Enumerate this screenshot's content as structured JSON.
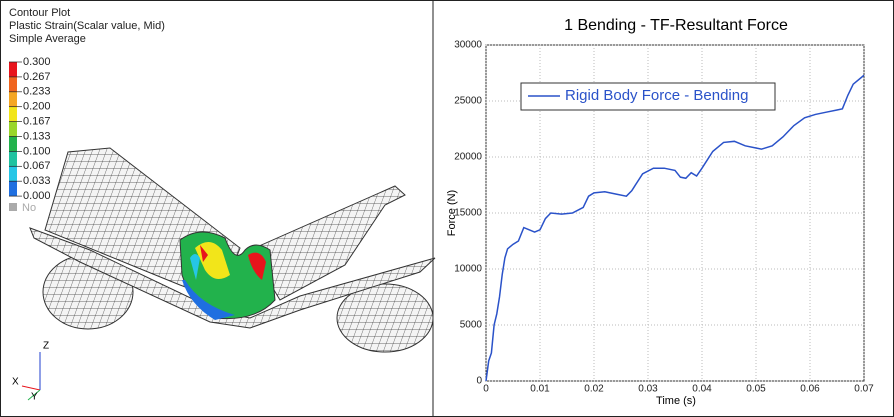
{
  "contour_plot": {
    "title": "Contour Plot",
    "subtitle": "Plastic Strain(Scalar value, Mid)",
    "averaging": "Simple Average",
    "legend": {
      "levels": [
        "0.300",
        "0.267",
        "0.233",
        "0.200",
        "0.167",
        "0.133",
        "0.100",
        "0.067",
        "0.033",
        "0.000"
      ],
      "colors": [
        "#e8141c",
        "#f0641e",
        "#f5a623",
        "#f2e51a",
        "#9ad62a",
        "#22b24c",
        "#1fc2a0",
        "#26c6e6",
        "#1f6fe0"
      ],
      "no_result": "No"
    },
    "triad": {
      "z": "Z",
      "x": "X",
      "y": "Y"
    }
  },
  "chart_data": {
    "type": "line",
    "title": "1 Bending - TF-Resultant Force",
    "x_label": "Time (s)",
    "y_label": "Force (N)",
    "x": [
      0,
      0.0005,
      0.001,
      0.0015,
      0.002,
      0.0025,
      0.003,
      0.0035,
      0.004,
      0.005,
      0.006,
      0.007,
      0.008,
      0.009,
      0.01,
      0.011,
      0.012,
      0.014,
      0.016,
      0.018,
      0.019,
      0.02,
      0.022,
      0.024,
      0.026,
      0.027,
      0.029,
      0.031,
      0.033,
      0.035,
      0.036,
      0.037,
      0.038,
      0.039,
      0.04,
      0.042,
      0.044,
      0.046,
      0.048,
      0.05,
      0.051,
      0.053,
      0.055,
      0.057,
      0.059,
      0.061,
      0.063,
      0.065,
      0.066,
      0.067,
      0.068,
      0.07
    ],
    "series": [
      {
        "name": "Rigid Body Force - Bending",
        "color": "#2a52c9",
        "values": [
          0,
          1800,
          2500,
          5000,
          6000,
          7500,
          9500,
          11000,
          11800,
          12200,
          12500,
          13700,
          13500,
          13300,
          13500,
          14500,
          15000,
          14900,
          15000,
          15500,
          16500,
          16800,
          16900,
          16700,
          16500,
          17000,
          18500,
          19000,
          19000,
          18800,
          18200,
          18100,
          18600,
          18300,
          19000,
          20500,
          21300,
          21400,
          21000,
          20800,
          20700,
          21000,
          21800,
          22800,
          23500,
          23800,
          24000,
          24200,
          24300,
          25500,
          26500,
          27300
        ]
      }
    ],
    "xlim": [
      0,
      0.07
    ],
    "xticks": [
      0,
      0.01,
      0.02,
      0.03,
      0.04,
      0.05,
      0.06,
      0.07
    ],
    "ylim": [
      0,
      30000
    ],
    "yticks": [
      0,
      5000,
      10000,
      15000,
      20000,
      25000,
      30000
    ],
    "grid": true
  }
}
